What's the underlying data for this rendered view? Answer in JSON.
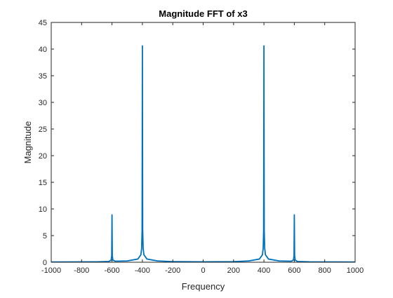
{
  "chart_data": {
    "type": "line",
    "title": "Magnitude FFT of x3",
    "xlabel": "Frequency",
    "ylabel": "Magnitude",
    "xlim": [
      -1000,
      1000
    ],
    "ylim": [
      0,
      45
    ],
    "xticks": [
      -1000,
      -800,
      -600,
      -400,
      -200,
      0,
      200,
      400,
      600,
      800,
      1000
    ],
    "yticks": [
      0,
      5,
      10,
      15,
      20,
      25,
      30,
      35,
      40,
      45
    ],
    "grid": false,
    "line_color": "#0072BD",
    "series": [
      {
        "x": [
          -1000,
          -700,
          -620,
          -606,
          -602,
          -600,
          -598,
          -594,
          -580,
          -500,
          -430,
          -410,
          -405,
          -402,
          -400,
          -398,
          -395,
          -390,
          -370,
          -300,
          -200,
          0,
          200,
          300,
          370,
          390,
          395,
          398,
          400,
          402,
          405,
          410,
          430,
          500,
          580,
          594,
          598,
          600,
          602,
          606,
          620,
          700,
          1000
        ],
        "y": [
          0.05,
          0.08,
          0.15,
          0.4,
          1.2,
          8.9,
          1.2,
          0.4,
          0.2,
          0.25,
          0.6,
          1.4,
          2.6,
          6.0,
          40.6,
          6.0,
          2.6,
          1.4,
          0.6,
          0.25,
          0.12,
          0.08,
          0.12,
          0.25,
          0.6,
          1.4,
          2.6,
          6.0,
          40.6,
          6.0,
          2.6,
          1.4,
          0.6,
          0.25,
          0.2,
          0.4,
          1.2,
          8.9,
          1.2,
          0.4,
          0.15,
          0.08,
          0.05
        ]
      }
    ]
  }
}
